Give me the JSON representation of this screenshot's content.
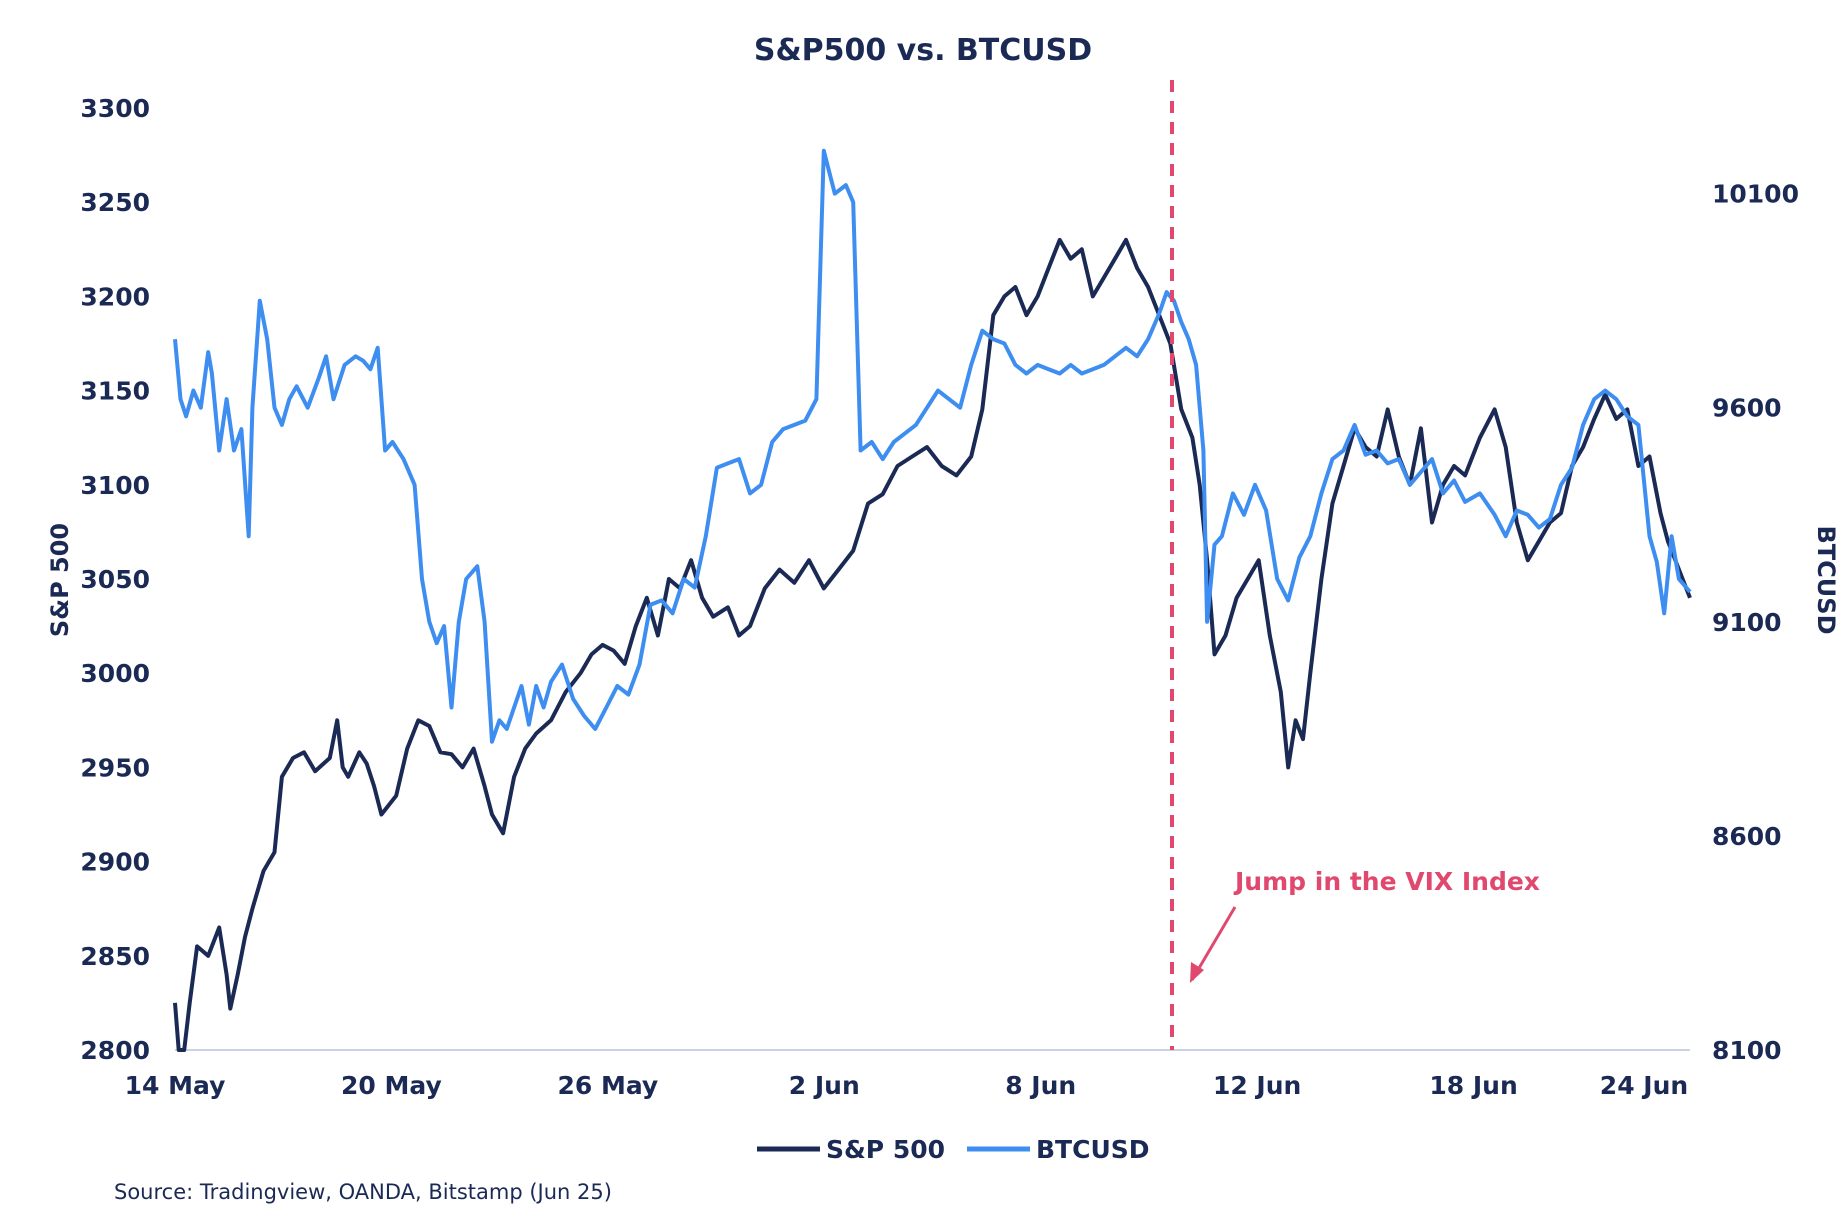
{
  "chart_data": {
    "type": "line",
    "title": "S&P500 vs. BTCUSD",
    "source": "Source: Tradingview, OANDA, Bitstamp (Jun 25)",
    "x_ticks": [
      "14 May",
      "20 May",
      "26 May",
      "2 Jun",
      "8 Jun",
      "12 Jun",
      "18 Jun",
      "24 Jun"
    ],
    "y_left": {
      "label": "S&P 500",
      "range": [
        2800,
        3300
      ],
      "ticks": [
        3300,
        3250,
        3200,
        3150,
        3100,
        3050,
        3000,
        2950,
        2900,
        2850,
        2800
      ]
    },
    "y_right": {
      "label": "BTCUSD",
      "range": [
        8100,
        10300
      ],
      "ticks": [
        10100,
        9600,
        9100,
        8600,
        8100
      ]
    },
    "annotation": {
      "text": "Jump in the VIX Index",
      "position": "10.5 Jun"
    },
    "colors": {
      "sp500": "#1b2a55",
      "btcusd": "#3d8ef0",
      "annotation": "#e0486e",
      "text": "#1b2a55"
    },
    "series": [
      {
        "name": "S&P 500",
        "axis": "left",
        "points": [
          [
            0.0,
            2825
          ],
          [
            0.1,
            2800
          ],
          [
            0.25,
            2800
          ],
          [
            0.4,
            2825
          ],
          [
            0.6,
            2855
          ],
          [
            0.9,
            2850
          ],
          [
            1.2,
            2865
          ],
          [
            1.4,
            2840
          ],
          [
            1.5,
            2822
          ],
          [
            1.7,
            2840
          ],
          [
            1.9,
            2860
          ],
          [
            2.1,
            2875
          ],
          [
            2.4,
            2895
          ],
          [
            2.7,
            2905
          ],
          [
            2.9,
            2945
          ],
          [
            3.2,
            2955
          ],
          [
            3.5,
            2958
          ],
          [
            3.8,
            2948
          ],
          [
            4.2,
            2955
          ],
          [
            4.4,
            2975
          ],
          [
            4.55,
            2950
          ],
          [
            4.7,
            2945
          ],
          [
            5.0,
            2958
          ],
          [
            5.2,
            2952
          ],
          [
            5.4,
            2940
          ],
          [
            5.6,
            2925
          ],
          [
            6.0,
            2935
          ],
          [
            6.3,
            2960
          ],
          [
            6.6,
            2975
          ],
          [
            6.9,
            2972
          ],
          [
            7.2,
            2958
          ],
          [
            7.5,
            2957
          ],
          [
            7.8,
            2950
          ],
          [
            8.1,
            2960
          ],
          [
            8.4,
            2940
          ],
          [
            8.6,
            2925
          ],
          [
            8.9,
            2915
          ],
          [
            9.2,
            2945
          ],
          [
            9.5,
            2960
          ],
          [
            9.8,
            2968
          ],
          [
            10.2,
            2975
          ],
          [
            10.6,
            2990
          ],
          [
            11.0,
            3000
          ],
          [
            11.3,
            3010
          ],
          [
            11.6,
            3015
          ],
          [
            11.9,
            3012
          ],
          [
            12.2,
            3005
          ],
          [
            12.5,
            3025
          ],
          [
            12.8,
            3040
          ],
          [
            13.1,
            3020
          ],
          [
            13.4,
            3050
          ],
          [
            13.7,
            3045
          ],
          [
            14.0,
            3060
          ],
          [
            14.3,
            3040
          ],
          [
            14.6,
            3030
          ],
          [
            15.0,
            3035
          ],
          [
            15.3,
            3020
          ],
          [
            15.6,
            3025
          ],
          [
            16.0,
            3045
          ],
          [
            16.4,
            3055
          ],
          [
            16.8,
            3048
          ],
          [
            17.2,
            3060
          ],
          [
            17.6,
            3045
          ],
          [
            18.0,
            3055
          ],
          [
            18.4,
            3065
          ],
          [
            18.8,
            3090
          ],
          [
            19.2,
            3095
          ],
          [
            19.6,
            3110
          ],
          [
            20.0,
            3115
          ],
          [
            20.4,
            3120
          ],
          [
            20.8,
            3110
          ],
          [
            21.2,
            3105
          ],
          [
            21.6,
            3115
          ],
          [
            21.9,
            3140
          ],
          [
            22.2,
            3190
          ],
          [
            22.5,
            3200
          ],
          [
            22.8,
            3205
          ],
          [
            23.1,
            3190
          ],
          [
            23.4,
            3200
          ],
          [
            23.7,
            3215
          ],
          [
            24.0,
            3230
          ],
          [
            24.3,
            3220
          ],
          [
            24.6,
            3225
          ],
          [
            24.9,
            3200
          ],
          [
            25.2,
            3210
          ],
          [
            25.5,
            3220
          ],
          [
            25.8,
            3230
          ],
          [
            26.1,
            3215
          ],
          [
            26.4,
            3205
          ],
          [
            26.7,
            3190
          ],
          [
            27.0,
            3175
          ],
          [
            27.3,
            3140
          ],
          [
            27.6,
            3125
          ],
          [
            27.8,
            3100
          ],
          [
            28.0,
            3060
          ],
          [
            28.2,
            3010
          ],
          [
            28.5,
            3020
          ],
          [
            28.8,
            3040
          ],
          [
            29.1,
            3050
          ],
          [
            29.4,
            3060
          ],
          [
            29.7,
            3020
          ],
          [
            30.0,
            2990
          ],
          [
            30.2,
            2950
          ],
          [
            30.4,
            2975
          ],
          [
            30.6,
            2965
          ],
          [
            30.8,
            3000
          ],
          [
            31.1,
            3050
          ],
          [
            31.4,
            3090
          ],
          [
            31.7,
            3110
          ],
          [
            32.0,
            3130
          ],
          [
            32.3,
            3120
          ],
          [
            32.6,
            3115
          ],
          [
            32.9,
            3140
          ],
          [
            33.2,
            3115
          ],
          [
            33.5,
            3100
          ],
          [
            33.8,
            3130
          ],
          [
            34.1,
            3080
          ],
          [
            34.4,
            3100
          ],
          [
            34.7,
            3110
          ],
          [
            35.0,
            3105
          ],
          [
            35.4,
            3125
          ],
          [
            35.8,
            3140
          ],
          [
            36.1,
            3120
          ],
          [
            36.4,
            3080
          ],
          [
            36.7,
            3060
          ],
          [
            37.0,
            3070
          ],
          [
            37.3,
            3080
          ],
          [
            37.6,
            3085
          ],
          [
            37.9,
            3110
          ],
          [
            38.2,
            3120
          ],
          [
            38.5,
            3135
          ],
          [
            38.8,
            3148
          ],
          [
            39.1,
            3135
          ],
          [
            39.4,
            3140
          ],
          [
            39.7,
            3110
          ],
          [
            40.0,
            3115
          ],
          [
            40.3,
            3085
          ],
          [
            40.5,
            3070
          ],
          [
            40.7,
            3060
          ],
          [
            40.9,
            3050
          ],
          [
            41.1,
            3040
          ]
        ]
      },
      {
        "name": "BTCUSD",
        "axis": "right",
        "points": [
          [
            0.0,
            9760
          ],
          [
            0.15,
            9620
          ],
          [
            0.3,
            9580
          ],
          [
            0.5,
            9640
          ],
          [
            0.7,
            9600
          ],
          [
            0.9,
            9730
          ],
          [
            1.0,
            9680
          ],
          [
            1.2,
            9500
          ],
          [
            1.4,
            9620
          ],
          [
            1.6,
            9500
          ],
          [
            1.8,
            9550
          ],
          [
            2.0,
            9300
          ],
          [
            2.1,
            9600
          ],
          [
            2.3,
            9850
          ],
          [
            2.5,
            9760
          ],
          [
            2.7,
            9600
          ],
          [
            2.9,
            9560
          ],
          [
            3.1,
            9620
          ],
          [
            3.3,
            9650
          ],
          [
            3.6,
            9600
          ],
          [
            3.9,
            9670
          ],
          [
            4.1,
            9720
          ],
          [
            4.3,
            9620
          ],
          [
            4.6,
            9700
          ],
          [
            4.9,
            9720
          ],
          [
            5.1,
            9710
          ],
          [
            5.3,
            9690
          ],
          [
            5.5,
            9740
          ],
          [
            5.7,
            9500
          ],
          [
            5.9,
            9520
          ],
          [
            6.2,
            9480
          ],
          [
            6.5,
            9420
          ],
          [
            6.7,
            9200
          ],
          [
            6.9,
            9100
          ],
          [
            7.1,
            9050
          ],
          [
            7.3,
            9090
          ],
          [
            7.5,
            8900
          ],
          [
            7.7,
            9100
          ],
          [
            7.9,
            9200
          ],
          [
            8.2,
            9230
          ],
          [
            8.4,
            9100
          ],
          [
            8.6,
            8820
          ],
          [
            8.8,
            8870
          ],
          [
            9.0,
            8850
          ],
          [
            9.2,
            8900
          ],
          [
            9.4,
            8950
          ],
          [
            9.6,
            8860
          ],
          [
            9.8,
            8950
          ],
          [
            10.0,
            8900
          ],
          [
            10.2,
            8960
          ],
          [
            10.5,
            9000
          ],
          [
            10.8,
            8920
          ],
          [
            11.1,
            8880
          ],
          [
            11.4,
            8850
          ],
          [
            11.7,
            8900
          ],
          [
            12.0,
            8950
          ],
          [
            12.3,
            8930
          ],
          [
            12.6,
            9000
          ],
          [
            12.9,
            9140
          ],
          [
            13.2,
            9150
          ],
          [
            13.5,
            9120
          ],
          [
            13.8,
            9200
          ],
          [
            14.1,
            9180
          ],
          [
            14.4,
            9300
          ],
          [
            14.7,
            9460
          ],
          [
            15.0,
            9470
          ],
          [
            15.3,
            9480
          ],
          [
            15.6,
            9400
          ],
          [
            15.9,
            9420
          ],
          [
            16.2,
            9520
          ],
          [
            16.5,
            9550
          ],
          [
            16.8,
            9560
          ],
          [
            17.1,
            9570
          ],
          [
            17.4,
            9620
          ],
          [
            17.6,
            10200
          ],
          [
            17.9,
            10100
          ],
          [
            18.2,
            10120
          ],
          [
            18.4,
            10080
          ],
          [
            18.6,
            9500
          ],
          [
            18.9,
            9520
          ],
          [
            19.2,
            9480
          ],
          [
            19.5,
            9520
          ],
          [
            19.8,
            9540
          ],
          [
            20.1,
            9560
          ],
          [
            20.4,
            9600
          ],
          [
            20.7,
            9640
          ],
          [
            21.0,
            9620
          ],
          [
            21.3,
            9600
          ],
          [
            21.6,
            9700
          ],
          [
            21.9,
            9780
          ],
          [
            22.2,
            9760
          ],
          [
            22.5,
            9750
          ],
          [
            22.8,
            9700
          ],
          [
            23.1,
            9680
          ],
          [
            23.4,
            9700
          ],
          [
            23.7,
            9690
          ],
          [
            24.0,
            9680
          ],
          [
            24.3,
            9700
          ],
          [
            24.6,
            9680
          ],
          [
            24.9,
            9690
          ],
          [
            25.2,
            9700
          ],
          [
            25.5,
            9720
          ],
          [
            25.8,
            9740
          ],
          [
            26.1,
            9720
          ],
          [
            26.4,
            9760
          ],
          [
            26.7,
            9820
          ],
          [
            26.9,
            9870
          ],
          [
            27.1,
            9850
          ],
          [
            27.3,
            9800
          ],
          [
            27.5,
            9760
          ],
          [
            27.7,
            9700
          ],
          [
            27.9,
            9500
          ],
          [
            28.0,
            9100
          ],
          [
            28.2,
            9280
          ],
          [
            28.4,
            9300
          ],
          [
            28.7,
            9400
          ],
          [
            29.0,
            9350
          ],
          [
            29.3,
            9420
          ],
          [
            29.6,
            9360
          ],
          [
            29.9,
            9200
          ],
          [
            30.2,
            9150
          ],
          [
            30.5,
            9250
          ],
          [
            30.8,
            9300
          ],
          [
            31.1,
            9400
          ],
          [
            31.4,
            9480
          ],
          [
            31.7,
            9500
          ],
          [
            32.0,
            9560
          ],
          [
            32.3,
            9490
          ],
          [
            32.6,
            9500
          ],
          [
            32.9,
            9470
          ],
          [
            33.2,
            9480
          ],
          [
            33.5,
            9420
          ],
          [
            33.8,
            9450
          ],
          [
            34.1,
            9480
          ],
          [
            34.4,
            9400
          ],
          [
            34.7,
            9430
          ],
          [
            35.0,
            9380
          ],
          [
            35.4,
            9400
          ],
          [
            35.8,
            9350
          ],
          [
            36.1,
            9300
          ],
          [
            36.4,
            9360
          ],
          [
            36.7,
            9350
          ],
          [
            37.0,
            9320
          ],
          [
            37.3,
            9340
          ],
          [
            37.6,
            9420
          ],
          [
            37.9,
            9460
          ],
          [
            38.2,
            9560
          ],
          [
            38.5,
            9620
          ],
          [
            38.8,
            9640
          ],
          [
            39.1,
            9620
          ],
          [
            39.4,
            9580
          ],
          [
            39.7,
            9560
          ],
          [
            40.0,
            9300
          ],
          [
            40.2,
            9240
          ],
          [
            40.4,
            9120
          ],
          [
            40.6,
            9300
          ],
          [
            40.8,
            9200
          ],
          [
            41.1,
            9170
          ]
        ]
      }
    ]
  }
}
